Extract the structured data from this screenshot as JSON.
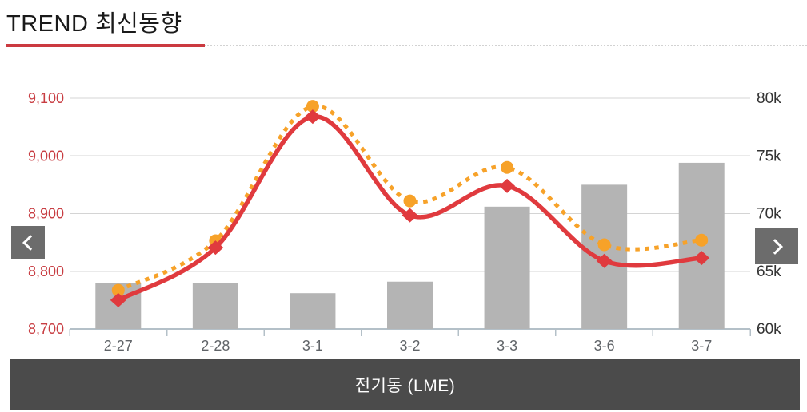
{
  "header": {
    "title": "TREND 최신동향",
    "accent_color": "#cb3a40"
  },
  "nav": {
    "prev_icon": "chevron-left",
    "next_icon": "chevron-right",
    "button_color": "#6c6c6c"
  },
  "footer": {
    "label": "전기동 (LME)",
    "bg_color": "#4b4b4b",
    "text_color": "#ffffff"
  },
  "chart_data": {
    "type": "combo",
    "title": "TREND 최신동향",
    "categories": [
      "2-27",
      "2-28",
      "3-1",
      "3-2",
      "3-3",
      "3-6",
      "3-7"
    ],
    "series": [
      {
        "name": "volume-bars",
        "type": "bar",
        "axis": "right",
        "color": "#b4b4b4",
        "values": [
          64000,
          63950,
          63100,
          64100,
          70600,
          72500,
          74400
        ]
      },
      {
        "name": "dotted-orange-line",
        "type": "line",
        "style": "dotted",
        "marker": "circle",
        "axis": "left",
        "color": "#f7a229",
        "values": [
          8767,
          8853,
          9086,
          8922,
          8980,
          8846,
          8854
        ]
      },
      {
        "name": "solid-red-line",
        "type": "line",
        "style": "solid",
        "marker": "diamond",
        "axis": "left",
        "color": "#e03a3e",
        "values": [
          8750,
          8841,
          9068,
          8897,
          8948,
          8818,
          8823
        ]
      }
    ],
    "left_axis": {
      "min": 8700,
      "max": 9100,
      "ticks": [
        8700,
        8800,
        8900,
        9000,
        9100
      ],
      "tick_labels": [
        "8,700",
        "8,800",
        "8,900",
        "9,000",
        "9,100"
      ],
      "label_color": "#c83d42"
    },
    "right_axis": {
      "min": 60000,
      "max": 80000,
      "ticks": [
        60000,
        65000,
        70000,
        75000,
        80000
      ],
      "tick_labels": [
        "60k",
        "65k",
        "70k",
        "75k",
        "80k"
      ],
      "label_color": "#333333"
    },
    "x_axis": {
      "label_color": "#606468",
      "line_color": "#b4c0c8"
    },
    "grid": true,
    "grid_color": "#d4d4d4",
    "legend": "none"
  }
}
